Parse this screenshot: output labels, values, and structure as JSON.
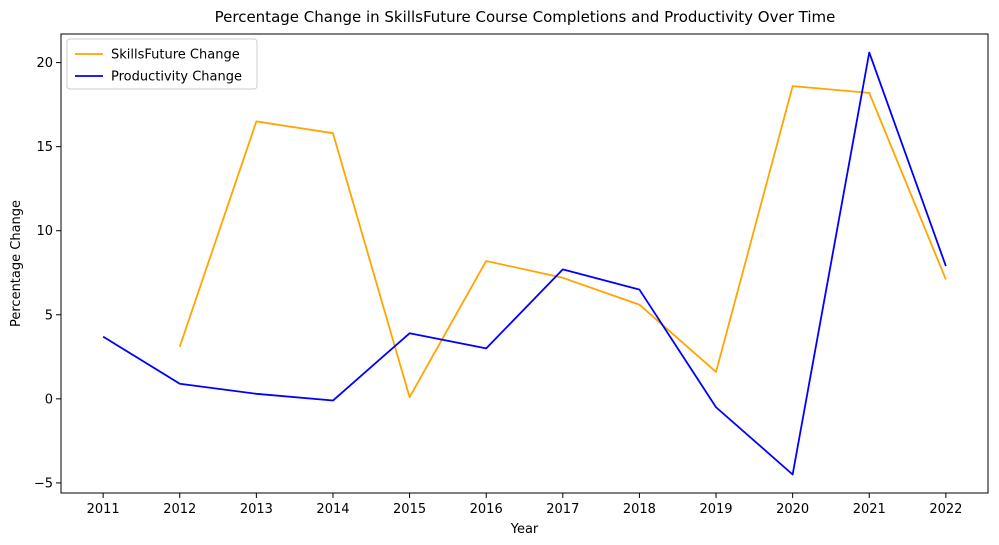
{
  "chart_data": {
    "type": "line",
    "title": "Percentage Change in SkillsFuture Course Completions and Productivity Over Time",
    "xlabel": "Year",
    "ylabel": "Percentage Change",
    "categories": [
      "2011",
      "2012",
      "2013",
      "2014",
      "2015",
      "2016",
      "2017",
      "2018",
      "2019",
      "2020",
      "2021",
      "2022"
    ],
    "ylim": [
      -5.6,
      21.7
    ],
    "yticks": [
      -5,
      0,
      5,
      10,
      15,
      20
    ],
    "grid": false,
    "legend_position": "top-left",
    "series": [
      {
        "name": "SkillsFuture Change",
        "color": "#FFA500",
        "values": [
          null,
          3.1,
          16.5,
          15.8,
          0.1,
          8.2,
          7.2,
          5.6,
          1.6,
          18.6,
          18.2,
          7.1
        ]
      },
      {
        "name": "Productivity Change",
        "color": "#0000FF",
        "values": [
          3.7,
          0.9,
          0.3,
          -0.1,
          3.9,
          3.0,
          7.7,
          6.5,
          -0.5,
          -4.5,
          20.6,
          7.9
        ]
      }
    ]
  }
}
